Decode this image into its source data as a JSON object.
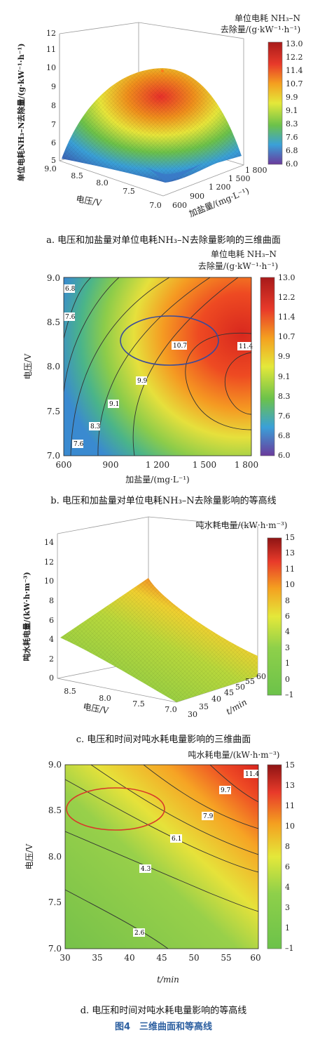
{
  "figure_caption": "图4　三维曲面和等高线",
  "colorbar_colors": [
    "#6a3a9c",
    "#3aa0d8",
    "#6cc24a",
    "#e4e83a",
    "#f4a020",
    "#e83a2a",
    "#a81a1a"
  ],
  "contour_line_color": "#333333",
  "highlight_colors": {
    "ellipse_b": "#3a4a9a",
    "ellipse_d": "#d83a2a"
  },
  "panels": [
    {
      "id": "a",
      "caption": "a. 电压和加盐量对单位电耗NH₃–N去除量影响的三维曲面",
      "colorbar_title": [
        "单位电耗 NH₃–N",
        "去除量/(g·kW⁻¹·h⁻¹)"
      ],
      "colorbar_ticks": [
        "6.0",
        "6.8",
        "7.6",
        "8.3",
        "9.1",
        "9.9",
        "10.7",
        "11.4",
        "12.2",
        "13.0"
      ],
      "zlabel": "单位电耗NH₃–N去除量/(g·kW⁻¹·h⁻¹)",
      "xlabel": "电压/V",
      "ylabel": "加盐量/(mg·L⁻¹)",
      "z_ticks": [
        "5",
        "6",
        "7",
        "8",
        "9",
        "10",
        "11",
        "12"
      ],
      "x_ticks": [
        "9.0",
        "8.5",
        "8.0",
        "7.5",
        "7.0"
      ],
      "y_ticks": [
        "600",
        "900",
        "1 200",
        "1 500",
        "1 800"
      ]
    },
    {
      "id": "b",
      "caption": "b. 电压和加盐量对单位电耗NH₃–N去除量影响的等高线",
      "colorbar_title": [
        "单位电耗 NH₃–N",
        "去除量/(g·kW⁻¹·h⁻¹)"
      ],
      "colorbar_ticks": [
        "6.0",
        "6.8",
        "7.6",
        "8.3",
        "9.1",
        "9.9",
        "10.7",
        "11.4",
        "12.2",
        "13.0"
      ],
      "xlabel": "加盐量/(mg·L⁻¹)",
      "ylabel": "电压/V",
      "x_ticks": [
        "600",
        "900",
        "1 200",
        "1 500",
        "1 800"
      ],
      "y_ticks": [
        "7.0",
        "7.5",
        "8.0",
        "8.5",
        "9.0"
      ],
      "contour_labels": [
        "6.8",
        "7.6",
        "7.6",
        "8.3",
        "9.1",
        "9.9",
        "10.7",
        "11.4"
      ]
    },
    {
      "id": "c",
      "caption": "c. 电压和时间对吨水耗电量影响的三维曲面",
      "colorbar_title": [
        "吨水耗电量/(kW·h·m⁻³)"
      ],
      "colorbar_ticks": [
        "–1",
        "0",
        "1",
        "3",
        "4",
        "6",
        "8",
        "10",
        "11",
        "13",
        "15"
      ],
      "zlabel": "吨水耗电量/(kW·h·m⁻³)",
      "xlabel": "电压/V",
      "ylabel": "t/min",
      "z_ticks": [
        "0",
        "2",
        "4",
        "6",
        "8",
        "10",
        "12",
        "14"
      ],
      "x_ticks": [
        "8.5",
        "8.0",
        "7.5",
        "7.0"
      ],
      "y_ticks": [
        "30",
        "35",
        "40",
        "45",
        "50",
        "55",
        "60"
      ]
    },
    {
      "id": "d",
      "caption": "d. 电压和时间对吨水耗电量影响的等高线",
      "colorbar_title": [
        "吨水耗电量/(kW·h·m⁻³)"
      ],
      "colorbar_ticks": [
        "–1",
        "1",
        "3",
        "4",
        "6",
        "8",
        "10",
        "11",
        "13",
        "15"
      ],
      "xlabel": "t/min",
      "ylabel": "电压/V",
      "x_ticks": [
        "30",
        "35",
        "40",
        "45",
        "50",
        "55",
        "60"
      ],
      "y_ticks": [
        "7.0",
        "7.5",
        "8.0",
        "8.5",
        "9.0"
      ],
      "contour_labels": [
        "11.4",
        "9.7",
        "7.9",
        "6.1",
        "4.3",
        "2.6"
      ]
    }
  ]
}
